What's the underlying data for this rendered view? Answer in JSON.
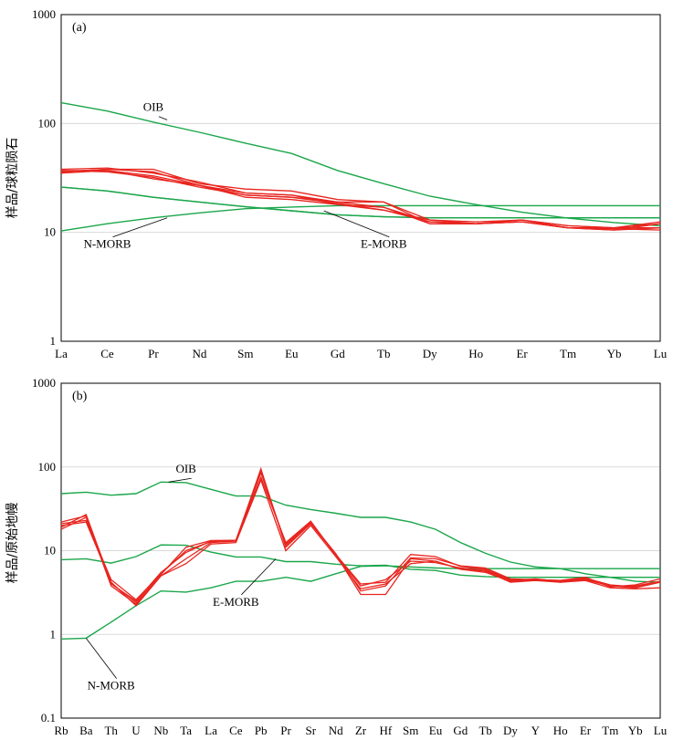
{
  "colors": {
    "sample": "#e8251f",
    "reference": "#1aa64a",
    "grid": "#d9d9d9",
    "frame": "#000000"
  },
  "chart_data": [
    {
      "type": "line",
      "panel_label": "(a)",
      "ylabel": "样品/球粒陨石",
      "yscale": "log",
      "ylim": [
        1,
        1000
      ],
      "yticks": [
        "1",
        "10",
        "100",
        "1000"
      ],
      "grid": true,
      "categories": [
        "La",
        "Ce",
        "Pr",
        "Nd",
        "Sm",
        "Eu",
        "Gd",
        "Tb",
        "Dy",
        "Ho",
        "Er",
        "Tm",
        "Yb",
        "Lu"
      ],
      "reference_series": [
        {
          "name": "OIB",
          "label_at": {
            "x": "Pr",
            "y": 130
          },
          "leader_to": {
            "x": 2.3,
            "y": 108
          },
          "values": [
            155,
            130,
            103,
            83,
            66,
            53,
            37,
            28,
            21.5,
            18,
            15.3,
            13.5,
            12.3,
            11.5
          ]
        },
        {
          "name": "N-MORB",
          "label_at": {
            "x": "Ce",
            "y": 7.2
          },
          "leader_to": {
            "x": 2.3,
            "y": 13.6
          },
          "values": [
            10.3,
            12,
            13.6,
            15.1,
            16.5,
            17.1,
            17.6,
            17.6,
            17.6,
            17.6,
            17.6,
            17.6,
            17.6,
            17.6
          ]
        },
        {
          "name": "E-MORB",
          "label_at": {
            "x": "Tb",
            "y": 7.2
          },
          "leader_to": {
            "x": 5.7,
            "y": 15.8
          },
          "values": [
            26,
            24,
            21,
            19,
            17.2,
            15.8,
            14.5,
            13.9,
            13.6,
            13.6,
            13.6,
            13.6,
            13.6,
            13.6
          ]
        },
        {
          "name": "",
          "values": [
            26,
            24,
            21,
            19,
            17.2,
            15.8,
            14.5,
            13.9,
            13.6,
            13.6,
            13.6,
            13.6,
            13.6,
            13.6
          ]
        }
      ],
      "sample_series": [
        {
          "values": [
            35,
            37,
            31,
            27,
            23,
            22,
            19,
            19,
            12,
            12,
            13,
            11,
            11,
            11
          ]
        },
        {
          "values": [
            36,
            38,
            38,
            28,
            25,
            24,
            20,
            19,
            13,
            12.5,
            13,
            11.5,
            11,
            12.5
          ]
        },
        {
          "values": [
            37,
            37,
            33,
            27,
            21,
            20,
            18,
            17,
            12.5,
            12,
            12.5,
            11,
            10.5,
            11
          ]
        },
        {
          "values": [
            36,
            38,
            36,
            27,
            22,
            21,
            19,
            17,
            12,
            12,
            12.5,
            11,
            10.8,
            10.5
          ]
        },
        {
          "values": [
            37,
            36,
            32,
            26,
            22,
            21,
            18.5,
            16,
            12.5,
            12,
            12.5,
            11,
            10.5,
            12
          ]
        },
        {
          "values": [
            38,
            39,
            35,
            29,
            23,
            22,
            18,
            16,
            13,
            12,
            13,
            11.5,
            11,
            12
          ]
        }
      ]
    },
    {
      "type": "line",
      "panel_label": "(b)",
      "ylabel": "样品/原始地幔",
      "yscale": "log",
      "ylim": [
        0.1,
        1000
      ],
      "yticks": [
        "0.1",
        "1",
        "10",
        "100",
        "1000"
      ],
      "grid": true,
      "categories": [
        "Rb",
        "Ba",
        "Th",
        "U",
        "Nb",
        "Ta",
        "La",
        "Ce",
        "Pb",
        "Pr",
        "Sr",
        "Nd",
        "Zr",
        "Hf",
        "Sm",
        "Eu",
        "Gd",
        "Tb",
        "Dy",
        "Y",
        "Ho",
        "Er",
        "Tm",
        "Yb",
        "Lu"
      ],
      "reference_series": [
        {
          "name": "OIB",
          "label_at": {
            "x": "Ta",
            "y": 85
          },
          "leader_to": {
            "x": 4.3,
            "y": 66
          },
          "values": [
            48,
            50,
            46,
            48,
            66,
            65,
            54,
            45,
            45,
            35,
            31,
            28,
            25,
            25,
            22,
            18,
            12.5,
            9.3,
            7.3,
            6.4,
            6.1,
            5.3,
            4.8,
            4.3,
            4.2
          ]
        },
        {
          "name": "E-MORB",
          "label_at": {
            "x": "Ce",
            "y": 2.2
          },
          "leader_to": {
            "x": 8.6,
            "y": 8.0
          },
          "values": [
            7.8,
            8,
            7.1,
            8.5,
            11.7,
            11.6,
            9.6,
            8.4,
            8.4,
            7.4,
            7.4,
            6.9,
            6.6,
            6.7,
            6,
            5.8,
            5.1,
            4.9,
            4.8,
            4.8,
            4.8,
            4.8,
            4.8,
            4.8,
            4.8
          ]
        },
        {
          "name": "N-MORB",
          "label_at": {
            "x": "Th",
            "y": 0.22
          },
          "leader_to": {
            "x": 1.0,
            "y": 0.9
          },
          "values": [
            0.88,
            0.9,
            1.4,
            2.2,
            3.3,
            3.2,
            3.6,
            4.3,
            4.3,
            4.8,
            4.3,
            5.3,
            6.5,
            6.6,
            6.4,
            6.2,
            6.1,
            6.1,
            6.1,
            6.1,
            6.1,
            6.1,
            6.1,
            6.1,
            6.1
          ]
        }
      ],
      "sample_series": [
        {
          "values": [
            20,
            22,
            4.2,
            2.2,
            5,
            8,
            12.5,
            13,
            85,
            12,
            22,
            9,
            3,
            3,
            8,
            7.5,
            6,
            5.5,
            4.3,
            4.5,
            4.2,
            4.5,
            3.8,
            3.8,
            4.3
          ]
        },
        {
          "values": [
            22,
            26,
            4,
            2.5,
            5.5,
            9.5,
            13,
            13,
            95,
            11,
            21,
            9,
            4,
            4.2,
            9,
            8.5,
            6.5,
            6,
            4.5,
            4.5,
            4.4,
            4.7,
            3.9,
            3.7,
            4.3
          ]
        },
        {
          "values": [
            18,
            25,
            3.8,
            2.3,
            5,
            7,
            12,
            12.5,
            70,
            10,
            20,
            8.5,
            3.5,
            4,
            7,
            7.5,
            6,
            5.7,
            4.2,
            4.4,
            4.2,
            4.4,
            3.6,
            3.5,
            3.6
          ]
        },
        {
          "values": [
            21,
            23,
            4.5,
            2.6,
            5.3,
            10,
            12.8,
            13,
            75,
            12.5,
            22.5,
            8.8,
            3.8,
            4.5,
            7.5,
            7.2,
            6.2,
            5.8,
            4.4,
            4.6,
            4.3,
            4.6,
            3.8,
            3.6,
            4.2
          ]
        },
        {
          "values": [
            19,
            27,
            4.1,
            2.4,
            5.2,
            11,
            13.2,
            13.3,
            90,
            11.5,
            21.5,
            9.2,
            3.3,
            3.8,
            8.2,
            8,
            6.6,
            6.2,
            4.6,
            4.5,
            4.4,
            4.8,
            3.7,
            3.9,
            4.6
          ]
        }
      ]
    }
  ]
}
